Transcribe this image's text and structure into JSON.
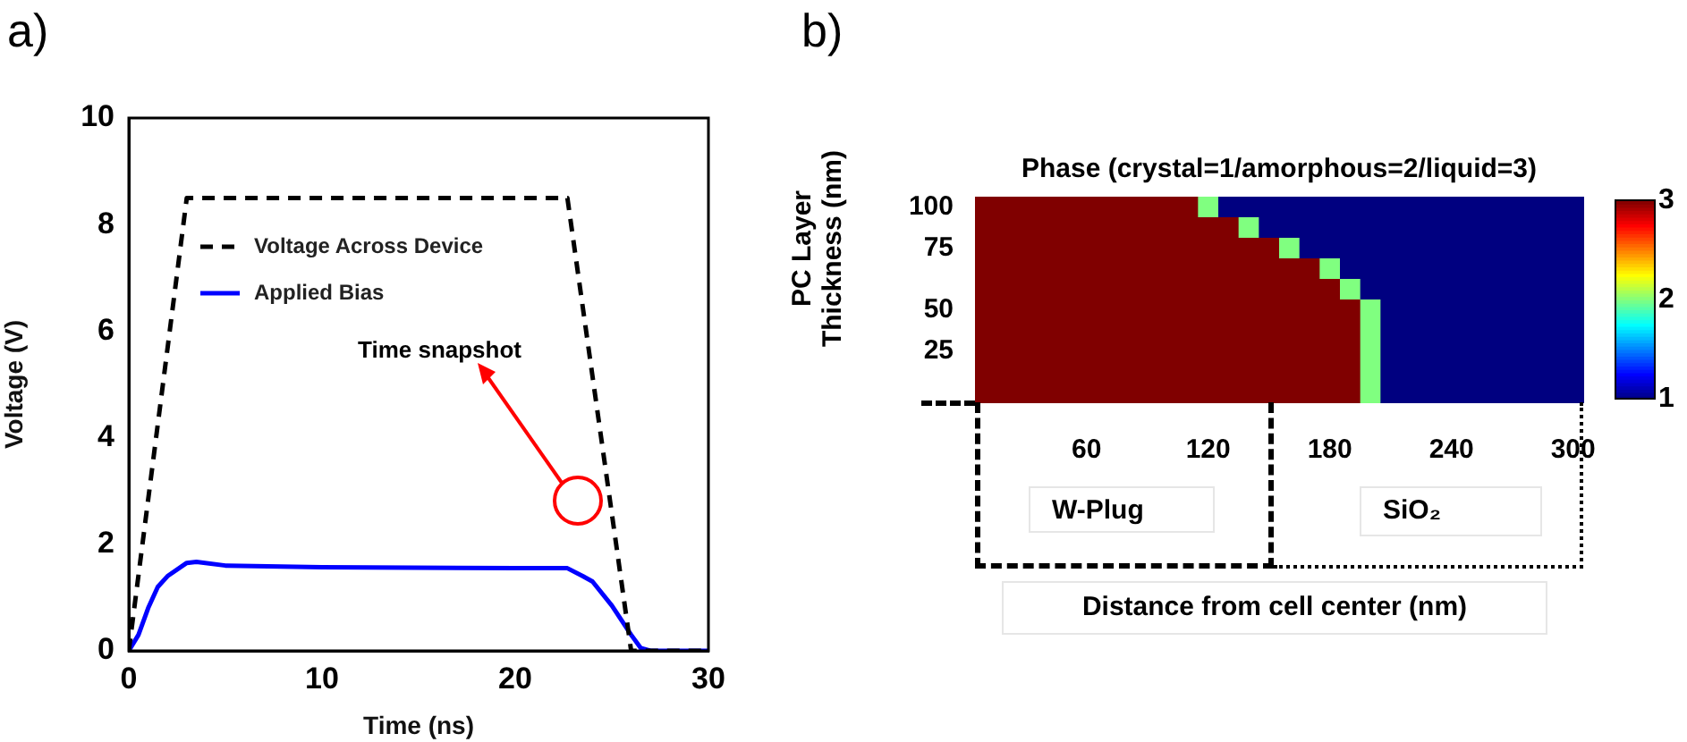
{
  "chart_data": [
    {
      "type": "line",
      "xlabel": "Time (ns)",
      "ylabel": "Voltage (V)",
      "x": [
        0,
        3,
        22.7,
        26,
        30
      ],
      "xlim": [
        0,
        30
      ],
      "ylim": [
        0,
        10
      ],
      "xticks": [
        0,
        10,
        20,
        30
      ],
      "yticks": [
        0,
        2,
        4,
        6,
        8,
        10
      ],
      "grid": false,
      "legend": "top left",
      "annotations": [
        "a)",
        "Time snapshot"
      ],
      "series": [
        {
          "name": "Voltage Across Device",
          "color": "#000000",
          "line_style": "dashed",
          "values": [
            0,
            8.5,
            8.5,
            0,
            0
          ]
        },
        {
          "name": "Applied Bias",
          "color": "#0000ff",
          "line_style": "solid",
          "x": [
            0,
            0.5,
            1,
            1.5,
            2,
            3,
            3.5,
            5,
            10,
            20,
            22.7,
            23.5,
            24,
            25,
            26,
            26.5,
            27,
            30
          ],
          "values": [
            0,
            0.3,
            0.8,
            1.2,
            1.4,
            1.65,
            1.67,
            1.6,
            1.57,
            1.55,
            1.55,
            1.4,
            1.3,
            0.85,
            0.3,
            0.05,
            0,
            0
          ]
        }
      ]
    },
    {
      "type": "heatmap",
      "title": "Phase (crystal=1/amorphous=2/liquid=3)",
      "xlabel": "Distance from cell center (nm)",
      "ylabel": "PC Layer Thickness (nm)",
      "annotations": [
        "b)",
        "W-Plug",
        "SiO₂"
      ],
      "categories": [
        null,
        null,
        null,
        null,
        null,
        "60",
        null,
        null,
        null,
        null,
        null,
        "120",
        null,
        null,
        null,
        null,
        null,
        "180",
        null,
        null,
        null,
        null,
        null,
        "240",
        null,
        null,
        null,
        null,
        null,
        "300"
      ],
      "y_categories": [
        "100",
        null,
        "75",
        null,
        null,
        "50",
        null,
        "25",
        null,
        null
      ],
      "clim": [
        1,
        3
      ],
      "cticks": [
        1,
        2,
        3
      ],
      "cells": [
        [
          3,
          3,
          3,
          3,
          3,
          3,
          3,
          3,
          3,
          3,
          3,
          2,
          1,
          1,
          1,
          1,
          1,
          1,
          1,
          1,
          1,
          1,
          1,
          1,
          1,
          1,
          1,
          1,
          1,
          1
        ],
        [
          3,
          3,
          3,
          3,
          3,
          3,
          3,
          3,
          3,
          3,
          3,
          3,
          3,
          2,
          1,
          1,
          1,
          1,
          1,
          1,
          1,
          1,
          1,
          1,
          1,
          1,
          1,
          1,
          1,
          1
        ],
        [
          3,
          3,
          3,
          3,
          3,
          3,
          3,
          3,
          3,
          3,
          3,
          3,
          3,
          3,
          3,
          2,
          1,
          1,
          1,
          1,
          1,
          1,
          1,
          1,
          1,
          1,
          1,
          1,
          1,
          1
        ],
        [
          3,
          3,
          3,
          3,
          3,
          3,
          3,
          3,
          3,
          3,
          3,
          3,
          3,
          3,
          3,
          3,
          3,
          2,
          1,
          1,
          1,
          1,
          1,
          1,
          1,
          1,
          1,
          1,
          1,
          1
        ],
        [
          3,
          3,
          3,
          3,
          3,
          3,
          3,
          3,
          3,
          3,
          3,
          3,
          3,
          3,
          3,
          3,
          3,
          3,
          2,
          1,
          1,
          1,
          1,
          1,
          1,
          1,
          1,
          1,
          1,
          1
        ],
        [
          3,
          3,
          3,
          3,
          3,
          3,
          3,
          3,
          3,
          3,
          3,
          3,
          3,
          3,
          3,
          3,
          3,
          3,
          3,
          2,
          1,
          1,
          1,
          1,
          1,
          1,
          1,
          1,
          1,
          1
        ],
        [
          3,
          3,
          3,
          3,
          3,
          3,
          3,
          3,
          3,
          3,
          3,
          3,
          3,
          3,
          3,
          3,
          3,
          3,
          3,
          2,
          1,
          1,
          1,
          1,
          1,
          1,
          1,
          1,
          1,
          1
        ],
        [
          3,
          3,
          3,
          3,
          3,
          3,
          3,
          3,
          3,
          3,
          3,
          3,
          3,
          3,
          3,
          3,
          3,
          3,
          3,
          2,
          1,
          1,
          1,
          1,
          1,
          1,
          1,
          1,
          1,
          1
        ],
        [
          3,
          3,
          3,
          3,
          3,
          3,
          3,
          3,
          3,
          3,
          3,
          3,
          3,
          3,
          3,
          3,
          3,
          3,
          3,
          2,
          1,
          1,
          1,
          1,
          1,
          1,
          1,
          1,
          1,
          1
        ],
        [
          3,
          3,
          3,
          3,
          3,
          3,
          3,
          3,
          3,
          3,
          3,
          3,
          3,
          3,
          3,
          3,
          3,
          3,
          3,
          2,
          1,
          1,
          1,
          1,
          1,
          1,
          1,
          1,
          1,
          1
        ]
      ]
    }
  ]
}
